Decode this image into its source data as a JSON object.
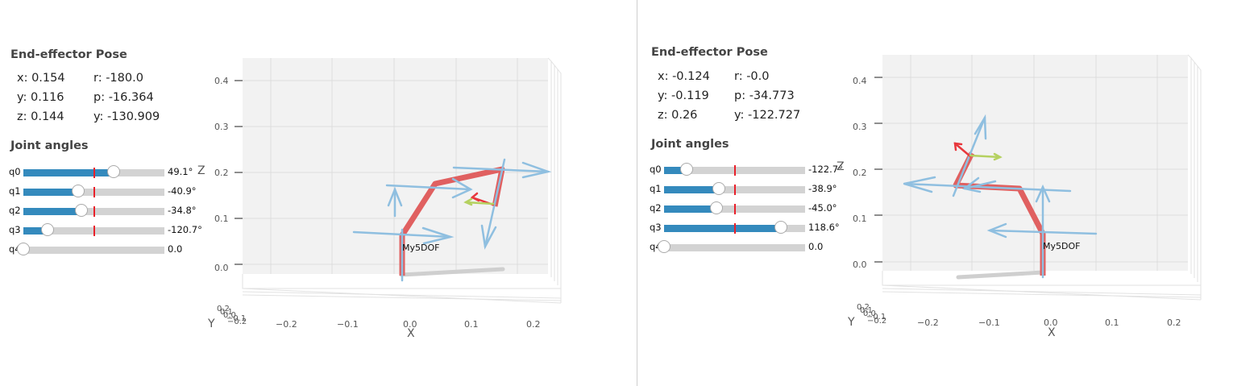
{
  "panels": [
    {
      "pose": {
        "title": "End-effector Pose",
        "x": "x: 0.154",
        "y": "y: 0.116",
        "z": "z: 0.144",
        "r": "r: -180.0",
        "p": "p: -16.364",
        "yaw": "y: -130.909"
      },
      "joints_title": "Joint angles",
      "joints": [
        {
          "label": "q0",
          "value": "49.1°",
          "fraction": 0.64
        },
        {
          "label": "q1",
          "value": "-40.9°",
          "fraction": 0.39
        },
        {
          "label": "q2",
          "value": "-34.8°",
          "fraction": 0.41
        },
        {
          "label": "q3",
          "value": "-120.7°",
          "fraction": 0.17
        },
        {
          "label": "q4",
          "value": "0.0",
          "fraction": 0.0
        }
      ],
      "plot": {
        "x_ticks": [
          "−0.2",
          "−0.1",
          "0.0",
          "0.1",
          "0.2"
        ],
        "z_ticks": [
          "0.0",
          "0.1",
          "0.2",
          "0.3",
          "0.4"
        ],
        "y_ticks": [
          "0.2",
          "0.1",
          "0.0",
          "−0.1",
          "−0.2"
        ],
        "x_label": "X",
        "y_label": "Y",
        "z_label": "Z",
        "robot_label": "My5DOF"
      }
    },
    {
      "pose": {
        "title": "End-effector Pose",
        "x": "x: -0.124",
        "y": "y: -0.119",
        "z": "z: 0.26",
        "r": "r: -0.0",
        "p": "p: -34.773",
        "yaw": "y: -122.727"
      },
      "joints_title": "Joint angles",
      "joints": [
        {
          "label": "q0",
          "value": "-122.7°",
          "fraction": 0.16
        },
        {
          "label": "q1",
          "value": "-38.9°",
          "fraction": 0.39
        },
        {
          "label": "q2",
          "value": "-45.0°",
          "fraction": 0.37
        },
        {
          "label": "q3",
          "value": "118.6°",
          "fraction": 0.83
        },
        {
          "label": "q4",
          "value": "0.0",
          "fraction": 0.0
        }
      ],
      "plot": {
        "x_ticks": [
          "−0.2",
          "−0.1",
          "0.0",
          "0.1",
          "0.2"
        ],
        "z_ticks": [
          "0.0",
          "0.1",
          "0.2",
          "0.3",
          "0.4"
        ],
        "y_ticks": [
          "0.2",
          "0.1",
          "0.0",
          "−0.1",
          "−0.2"
        ],
        "x_label": "X",
        "y_label": "Y",
        "z_label": "Z",
        "robot_label": "My5DOF"
      }
    }
  ],
  "colors": {
    "slider_fill": "#348abd",
    "slider_track": "#d3d3d3",
    "home_mark": "#e8202a",
    "link": "#e24a4a",
    "frame_axis": "#8fbfe0",
    "ee_x_axis": "#e8383d",
    "ee_y_axis": "#b5d160",
    "shadow": "#cfcfcf",
    "pane": "#f2f2f2",
    "grid": "#dcdcdc"
  },
  "icons": [
    "slider-knob"
  ]
}
